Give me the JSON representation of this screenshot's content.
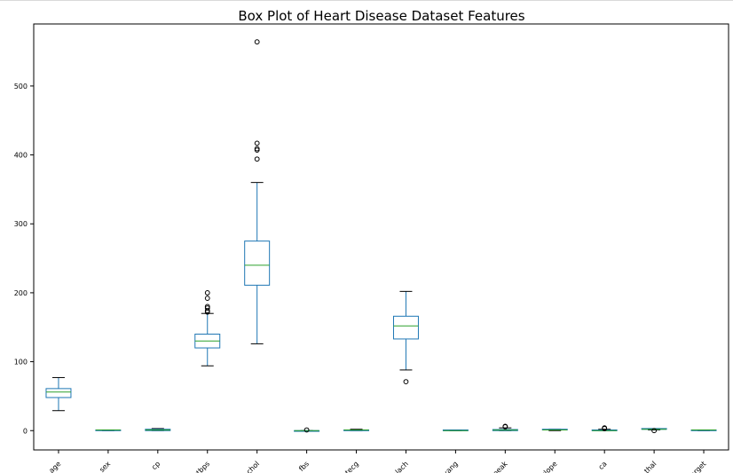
{
  "chart_data": {
    "type": "box",
    "title": "Box Plot of Heart Disease Dataset Features",
    "xlabel": "",
    "ylabel": "",
    "ylim": [
      -28,
      590
    ],
    "yticks": [
      0,
      100,
      200,
      300,
      400,
      500
    ],
    "grid": false,
    "colors": {
      "box": "#1f77b4",
      "median": "#2ca02c",
      "outlier": "#000000"
    },
    "categories": [
      "age",
      "sex",
      "cp",
      "trestbps",
      "chol",
      "fbs",
      "restecg",
      "thalach",
      "exang",
      "oldpeak",
      "slope",
      "ca",
      "thal",
      "target"
    ],
    "boxes": [
      {
        "whislo": 29,
        "q1": 48,
        "med": 56,
        "q3": 61,
        "whishi": 77,
        "fliers": []
      },
      {
        "whislo": 0,
        "q1": 0,
        "med": 1,
        "q3": 1,
        "whishi": 1,
        "fliers": []
      },
      {
        "whislo": 0,
        "q1": 0,
        "med": 1,
        "q3": 2,
        "whishi": 3,
        "fliers": []
      },
      {
        "whislo": 94,
        "q1": 120,
        "med": 130,
        "q3": 140,
        "whishi": 170,
        "fliers": [
          172,
          174,
          178,
          180,
          192,
          200
        ]
      },
      {
        "whislo": 126,
        "q1": 211,
        "med": 240,
        "q3": 275,
        "whishi": 360,
        "fliers": [
          394,
          407,
          409,
          417,
          564
        ]
      },
      {
        "whislo": 0,
        "q1": 0,
        "med": 0,
        "q3": 0,
        "whishi": 0,
        "fliers": [
          1
        ]
      },
      {
        "whislo": 0,
        "q1": 0,
        "med": 1,
        "q3": 1,
        "whishi": 2,
        "fliers": []
      },
      {
        "whislo": 88,
        "q1": 133,
        "med": 152,
        "q3": 166,
        "whishi": 202,
        "fliers": [
          71
        ]
      },
      {
        "whislo": 0,
        "q1": 0,
        "med": 0,
        "q3": 1,
        "whishi": 1,
        "fliers": []
      },
      {
        "whislo": 0,
        "q1": 0,
        "med": 0.8,
        "q3": 1.6,
        "whishi": 4,
        "fliers": [
          5.6,
          6.2
        ]
      },
      {
        "whislo": 0,
        "q1": 1,
        "med": 1,
        "q3": 2,
        "whishi": 2,
        "fliers": []
      },
      {
        "whislo": 0,
        "q1": 0,
        "med": 0,
        "q3": 1,
        "whishi": 2,
        "fliers": [
          3,
          4
        ]
      },
      {
        "whislo": 1,
        "q1": 2,
        "med": 2,
        "q3": 3,
        "whishi": 3,
        "fliers": [
          0
        ]
      },
      {
        "whislo": 0,
        "q1": 0,
        "med": 1,
        "q3": 1,
        "whishi": 1,
        "fliers": []
      }
    ]
  }
}
